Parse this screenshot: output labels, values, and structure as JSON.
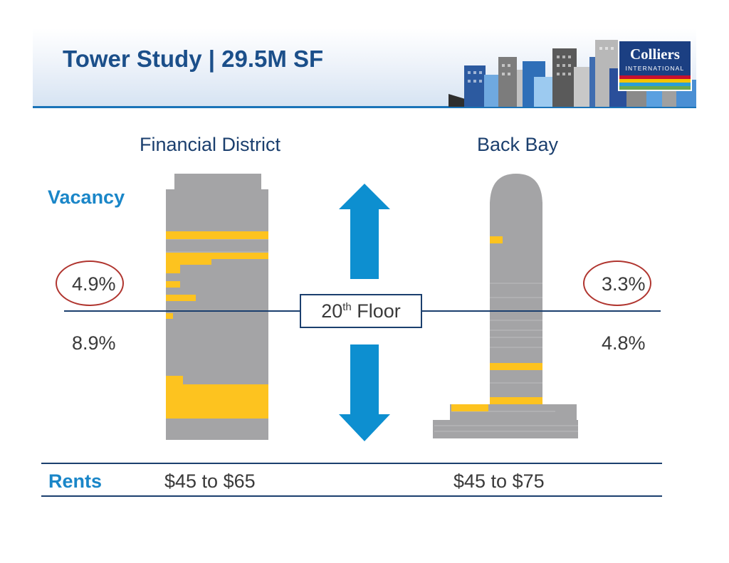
{
  "header": {
    "title": "Tower Study | 29.5M SF"
  },
  "logo": {
    "name": "Colliers",
    "subtitle": "INTERNATIONAL",
    "stripe_colors": [
      "#c8102e",
      "#f5c400",
      "#2a9fd8",
      "#6aa84f"
    ]
  },
  "districts": {
    "left": "Financial District",
    "right": "Back Bay"
  },
  "labels": {
    "vacancy": "Vacancy",
    "rents": "Rents"
  },
  "financial_district": {
    "vacancy_above": "4.9%",
    "vacancy_below": "8.9%",
    "rents": "$45 to $65"
  },
  "back_bay": {
    "vacancy_above": "3.3%",
    "vacancy_below": "4.8%",
    "rents": "$45 to $75"
  },
  "floor_marker": {
    "number": "20",
    "suffix": "th",
    "word": "Floor"
  },
  "colors": {
    "title": "#1b4f8a",
    "accent_blue": "#1a86c8",
    "arrow_blue": "#0d8fd0",
    "tower_gray": "#a4a4a6",
    "vacancy_yellow": "#fdc31f",
    "circle_red": "#b0352f",
    "rule_navy": "#1b3f6e"
  }
}
